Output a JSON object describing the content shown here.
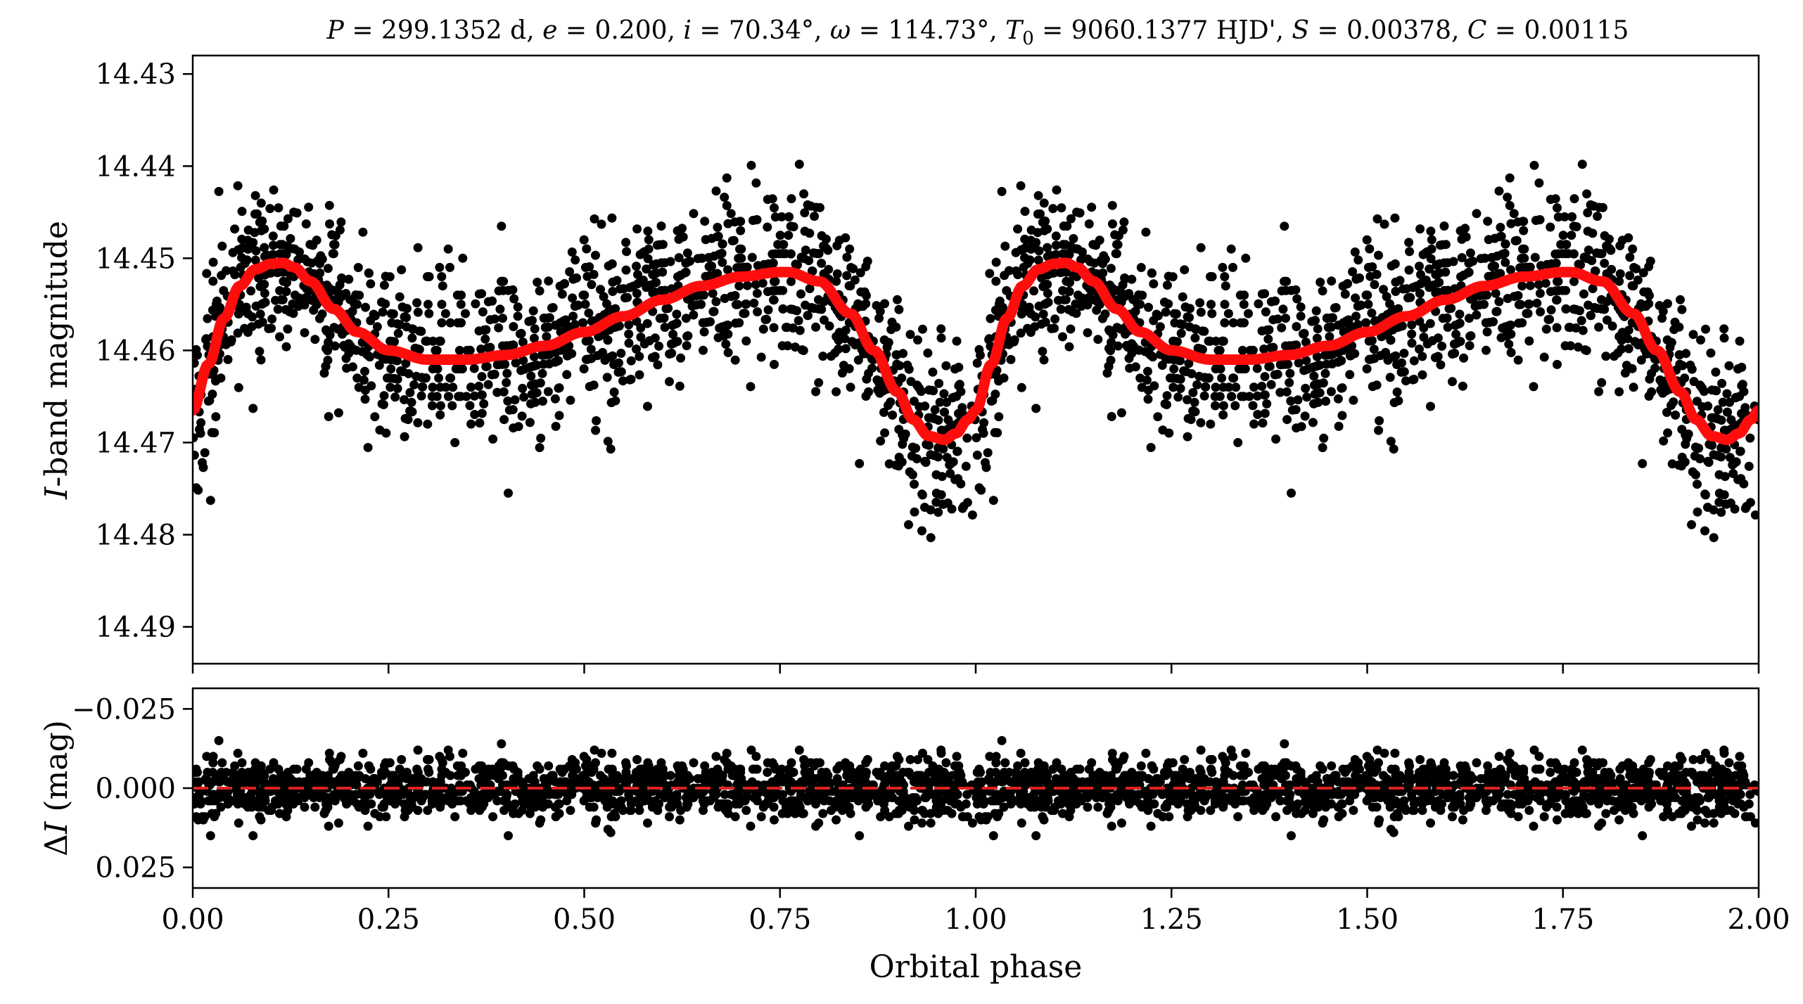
{
  "figure": {
    "title": "P = 299.1352 d, e = 0.200, i = 70.34°, ω = 114.73°, T0 = 9060.1377 HJD', S = 0.00378, C = 0.00115",
    "title_parts": {
      "P_sym": "P",
      "P_val": " = 299.1352 d, ",
      "e_sym": "e",
      "e_val": " = 0.200, ",
      "i_sym": "i",
      "i_val": " = 70.34°, ",
      "w_sym": "ω",
      "w_val": " = 114.73°, ",
      "T_sym": "T",
      "T_sub": "0",
      "T_val": " = 9060.1377 HJD', ",
      "S_sym": "S",
      "S_val": " = 0.00378, ",
      "C_sym": "C",
      "C_val": " = 0.00115"
    }
  },
  "chart_data": [
    {
      "type": "scatter",
      "panel": "top",
      "ylabel": "I-band magnitude",
      "ylabel_parts": {
        "sym": "I",
        "rest": "-band magnitude"
      },
      "xlim": [
        0.0,
        2.0
      ],
      "ylim": [
        14.494,
        14.428
      ],
      "y_inverted": true,
      "yticks": [
        14.43,
        14.44,
        14.45,
        14.46,
        14.47,
        14.48,
        14.49
      ],
      "ytick_labels": [
        "14.43",
        "14.44",
        "14.45",
        "14.46",
        "14.47",
        "14.48",
        "14.49"
      ],
      "xticks": [
        0.0,
        0.25,
        0.5,
        0.75,
        1.0,
        1.25,
        1.5,
        1.75,
        2.0
      ],
      "series": [
        {
          "kind": "points",
          "color": "#000000",
          "phase_period": 1.0,
          "n_points_per_cycle": 1400,
          "scatter_sigma_mag": 0.0045
        },
        {
          "kind": "model",
          "color": "#ff0d0d",
          "x": [
            0.0,
            0.02,
            0.04,
            0.06,
            0.08,
            0.1,
            0.115,
            0.13,
            0.15,
            0.18,
            0.21,
            0.25,
            0.3,
            0.35,
            0.4,
            0.45,
            0.5,
            0.55,
            0.6,
            0.65,
            0.7,
            0.75,
            0.76,
            0.8,
            0.84,
            0.87,
            0.9,
            0.92,
            0.94,
            0.96,
            0.975,
            0.99,
            1.0
          ],
          "y": [
            14.4665,
            14.4615,
            14.4565,
            14.453,
            14.4512,
            14.4506,
            14.4505,
            14.451,
            14.4525,
            14.4555,
            14.458,
            14.46,
            14.461,
            14.461,
            14.4605,
            14.4595,
            14.458,
            14.4563,
            14.4545,
            14.453,
            14.452,
            14.4515,
            14.4515,
            14.4525,
            14.456,
            14.46,
            14.4645,
            14.4675,
            14.4693,
            14.4697,
            14.469,
            14.4675,
            14.4665
          ]
        }
      ]
    },
    {
      "type": "scatter",
      "panel": "bottom",
      "xlabel": "Orbital phase",
      "ylabel": "ΔI (mag)",
      "ylabel_parts": {
        "delta": "Δ",
        "sym": "I",
        "rest": " (mag)"
      },
      "xlim": [
        0.0,
        2.0
      ],
      "ylim": [
        0.0315,
        -0.0315
      ],
      "y_inverted": true,
      "yticks": [
        -0.025,
        0.0,
        0.025
      ],
      "ytick_labels": [
        "−0.025",
        "0.000",
        "0.025"
      ],
      "xticks": [
        0.0,
        0.25,
        0.5,
        0.75,
        1.0,
        1.25,
        1.5,
        1.75,
        2.0
      ],
      "xtick_labels": [
        "0.00",
        "0.25",
        "0.50",
        "0.75",
        "1.00",
        "1.25",
        "1.50",
        "1.75",
        "2.00"
      ],
      "series": [
        {
          "kind": "points",
          "color": "#000000",
          "scatter_sigma_mag": 0.0045
        },
        {
          "kind": "zero-line",
          "color": "#dd2222",
          "y": 0.0,
          "style": "dashed"
        }
      ]
    }
  ]
}
